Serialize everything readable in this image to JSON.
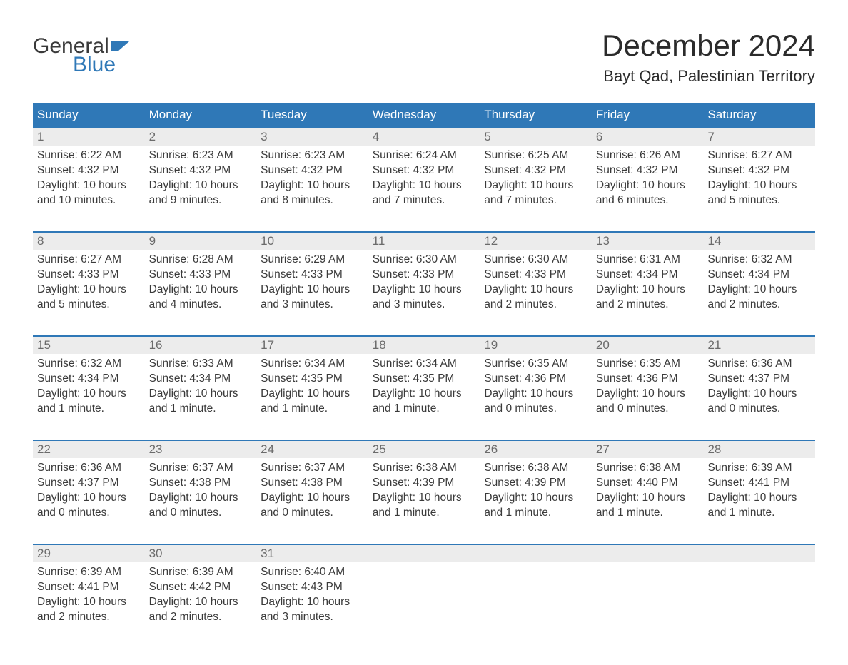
{
  "colors": {
    "header_bg": "#2f78b7",
    "header_text": "#ffffff",
    "daynum_bg": "#ececec",
    "daynum_text": "#6b6b6b",
    "body_text": "#3a3a3a",
    "row_border": "#2f78b7",
    "page_bg": "#ffffff"
  },
  "logo": {
    "text_general": "General",
    "text_blue": "Blue"
  },
  "title": "December 2024",
  "location": "Bayt Qad, Palestinian Territory",
  "weekdays": [
    "Sunday",
    "Monday",
    "Tuesday",
    "Wednesday",
    "Thursday",
    "Friday",
    "Saturday"
  ],
  "days": [
    {
      "n": "1",
      "sunrise": "Sunrise: 6:22 AM",
      "sunset": "Sunset: 4:32 PM",
      "daylight1": "Daylight: 10 hours",
      "daylight2": "and 10 minutes."
    },
    {
      "n": "2",
      "sunrise": "Sunrise: 6:23 AM",
      "sunset": "Sunset: 4:32 PM",
      "daylight1": "Daylight: 10 hours",
      "daylight2": "and 9 minutes."
    },
    {
      "n": "3",
      "sunrise": "Sunrise: 6:23 AM",
      "sunset": "Sunset: 4:32 PM",
      "daylight1": "Daylight: 10 hours",
      "daylight2": "and 8 minutes."
    },
    {
      "n": "4",
      "sunrise": "Sunrise: 6:24 AM",
      "sunset": "Sunset: 4:32 PM",
      "daylight1": "Daylight: 10 hours",
      "daylight2": "and 7 minutes."
    },
    {
      "n": "5",
      "sunrise": "Sunrise: 6:25 AM",
      "sunset": "Sunset: 4:32 PM",
      "daylight1": "Daylight: 10 hours",
      "daylight2": "and 7 minutes."
    },
    {
      "n": "6",
      "sunrise": "Sunrise: 6:26 AM",
      "sunset": "Sunset: 4:32 PM",
      "daylight1": "Daylight: 10 hours",
      "daylight2": "and 6 minutes."
    },
    {
      "n": "7",
      "sunrise": "Sunrise: 6:27 AM",
      "sunset": "Sunset: 4:32 PM",
      "daylight1": "Daylight: 10 hours",
      "daylight2": "and 5 minutes."
    },
    {
      "n": "8",
      "sunrise": "Sunrise: 6:27 AM",
      "sunset": "Sunset: 4:33 PM",
      "daylight1": "Daylight: 10 hours",
      "daylight2": "and 5 minutes."
    },
    {
      "n": "9",
      "sunrise": "Sunrise: 6:28 AM",
      "sunset": "Sunset: 4:33 PM",
      "daylight1": "Daylight: 10 hours",
      "daylight2": "and 4 minutes."
    },
    {
      "n": "10",
      "sunrise": "Sunrise: 6:29 AM",
      "sunset": "Sunset: 4:33 PM",
      "daylight1": "Daylight: 10 hours",
      "daylight2": "and 3 minutes."
    },
    {
      "n": "11",
      "sunrise": "Sunrise: 6:30 AM",
      "sunset": "Sunset: 4:33 PM",
      "daylight1": "Daylight: 10 hours",
      "daylight2": "and 3 minutes."
    },
    {
      "n": "12",
      "sunrise": "Sunrise: 6:30 AM",
      "sunset": "Sunset: 4:33 PM",
      "daylight1": "Daylight: 10 hours",
      "daylight2": "and 2 minutes."
    },
    {
      "n": "13",
      "sunrise": "Sunrise: 6:31 AM",
      "sunset": "Sunset: 4:34 PM",
      "daylight1": "Daylight: 10 hours",
      "daylight2": "and 2 minutes."
    },
    {
      "n": "14",
      "sunrise": "Sunrise: 6:32 AM",
      "sunset": "Sunset: 4:34 PM",
      "daylight1": "Daylight: 10 hours",
      "daylight2": "and 2 minutes."
    },
    {
      "n": "15",
      "sunrise": "Sunrise: 6:32 AM",
      "sunset": "Sunset: 4:34 PM",
      "daylight1": "Daylight: 10 hours",
      "daylight2": "and 1 minute."
    },
    {
      "n": "16",
      "sunrise": "Sunrise: 6:33 AM",
      "sunset": "Sunset: 4:34 PM",
      "daylight1": "Daylight: 10 hours",
      "daylight2": "and 1 minute."
    },
    {
      "n": "17",
      "sunrise": "Sunrise: 6:34 AM",
      "sunset": "Sunset: 4:35 PM",
      "daylight1": "Daylight: 10 hours",
      "daylight2": "and 1 minute."
    },
    {
      "n": "18",
      "sunrise": "Sunrise: 6:34 AM",
      "sunset": "Sunset: 4:35 PM",
      "daylight1": "Daylight: 10 hours",
      "daylight2": "and 1 minute."
    },
    {
      "n": "19",
      "sunrise": "Sunrise: 6:35 AM",
      "sunset": "Sunset: 4:36 PM",
      "daylight1": "Daylight: 10 hours",
      "daylight2": "and 0 minutes."
    },
    {
      "n": "20",
      "sunrise": "Sunrise: 6:35 AM",
      "sunset": "Sunset: 4:36 PM",
      "daylight1": "Daylight: 10 hours",
      "daylight2": "and 0 minutes."
    },
    {
      "n": "21",
      "sunrise": "Sunrise: 6:36 AM",
      "sunset": "Sunset: 4:37 PM",
      "daylight1": "Daylight: 10 hours",
      "daylight2": "and 0 minutes."
    },
    {
      "n": "22",
      "sunrise": "Sunrise: 6:36 AM",
      "sunset": "Sunset: 4:37 PM",
      "daylight1": "Daylight: 10 hours",
      "daylight2": "and 0 minutes."
    },
    {
      "n": "23",
      "sunrise": "Sunrise: 6:37 AM",
      "sunset": "Sunset: 4:38 PM",
      "daylight1": "Daylight: 10 hours",
      "daylight2": "and 0 minutes."
    },
    {
      "n": "24",
      "sunrise": "Sunrise: 6:37 AM",
      "sunset": "Sunset: 4:38 PM",
      "daylight1": "Daylight: 10 hours",
      "daylight2": "and 0 minutes."
    },
    {
      "n": "25",
      "sunrise": "Sunrise: 6:38 AM",
      "sunset": "Sunset: 4:39 PM",
      "daylight1": "Daylight: 10 hours",
      "daylight2": "and 1 minute."
    },
    {
      "n": "26",
      "sunrise": "Sunrise: 6:38 AM",
      "sunset": "Sunset: 4:39 PM",
      "daylight1": "Daylight: 10 hours",
      "daylight2": "and 1 minute."
    },
    {
      "n": "27",
      "sunrise": "Sunrise: 6:38 AM",
      "sunset": "Sunset: 4:40 PM",
      "daylight1": "Daylight: 10 hours",
      "daylight2": "and 1 minute."
    },
    {
      "n": "28",
      "sunrise": "Sunrise: 6:39 AM",
      "sunset": "Sunset: 4:41 PM",
      "daylight1": "Daylight: 10 hours",
      "daylight2": "and 1 minute."
    },
    {
      "n": "29",
      "sunrise": "Sunrise: 6:39 AM",
      "sunset": "Sunset: 4:41 PM",
      "daylight1": "Daylight: 10 hours",
      "daylight2": "and 2 minutes."
    },
    {
      "n": "30",
      "sunrise": "Sunrise: 6:39 AM",
      "sunset": "Sunset: 4:42 PM",
      "daylight1": "Daylight: 10 hours",
      "daylight2": "and 2 minutes."
    },
    {
      "n": "31",
      "sunrise": "Sunrise: 6:40 AM",
      "sunset": "Sunset: 4:43 PM",
      "daylight1": "Daylight: 10 hours",
      "daylight2": "and 3 minutes."
    }
  ]
}
